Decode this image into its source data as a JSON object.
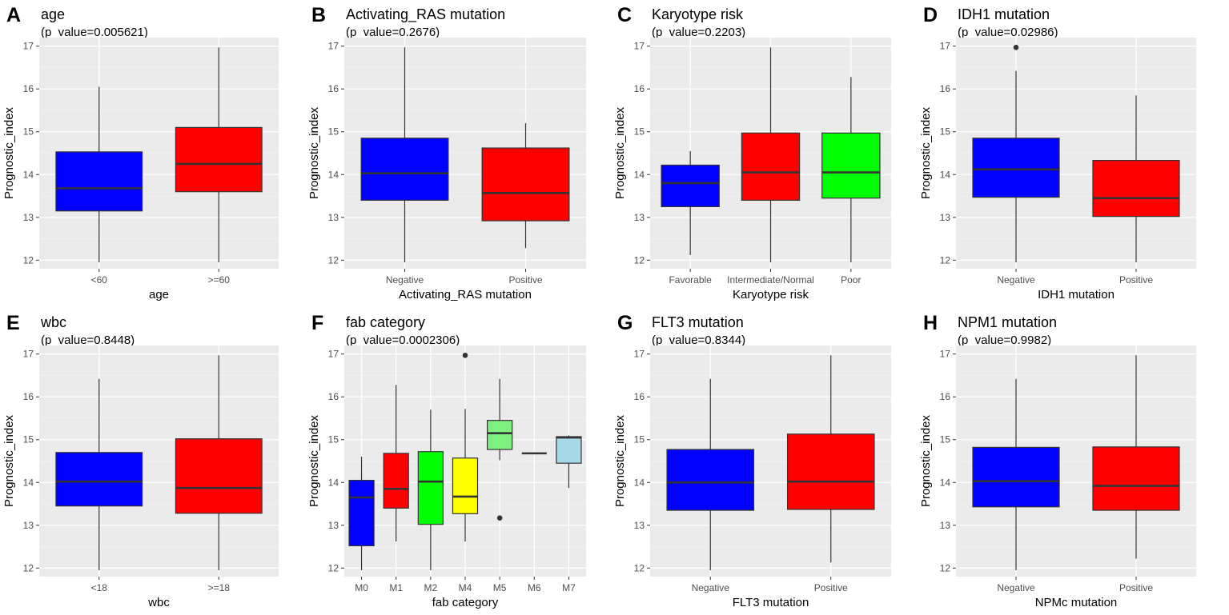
{
  "figure": {
    "ylabel": "Prognostic_index"
  },
  "chart_data": [
    {
      "type": "box",
      "letter": "A",
      "title": "age",
      "subtitle": "(p_value=0.005621)",
      "xlabel": "age",
      "ylabel": "Prognostic_index",
      "ylim": [
        11.8,
        17.2
      ],
      "yticks": [
        12,
        13,
        14,
        15,
        16,
        17
      ],
      "categories": [
        "<60",
        ">=60"
      ],
      "boxes": [
        {
          "label": "<60",
          "min": 11.95,
          "q1": 13.15,
          "median": 13.68,
          "q3": 14.53,
          "max": 16.05,
          "color": "#0000ff",
          "outliers": []
        },
        {
          "label": ">=60",
          "min": 11.95,
          "q1": 13.6,
          "median": 14.25,
          "q3": 15.1,
          "max": 16.97,
          "color": "#ff0000",
          "outliers": []
        }
      ]
    },
    {
      "type": "box",
      "letter": "B",
      "title": "Activating_RAS mutation",
      "subtitle": "(p_value=0.2676)",
      "xlabel": "Activating_RAS mutation",
      "ylabel": "Prognostic_index",
      "ylim": [
        11.8,
        17.2
      ],
      "yticks": [
        12,
        13,
        14,
        15,
        16,
        17
      ],
      "categories": [
        "Negative",
        "Positive"
      ],
      "boxes": [
        {
          "label": "Negative",
          "min": 11.95,
          "q1": 13.4,
          "median": 14.03,
          "q3": 14.85,
          "max": 16.97,
          "color": "#0000ff",
          "outliers": []
        },
        {
          "label": "Positive",
          "min": 12.28,
          "q1": 12.92,
          "median": 13.57,
          "q3": 14.62,
          "max": 15.2,
          "color": "#ff0000",
          "outliers": []
        }
      ]
    },
    {
      "type": "box",
      "letter": "C",
      "title": "Karyotype risk",
      "subtitle": "(p_value=0.2203)",
      "xlabel": "Karyotype risk",
      "ylabel": "Prognostic_index",
      "ylim": [
        11.8,
        17.2
      ],
      "yticks": [
        12,
        13,
        14,
        15,
        16,
        17
      ],
      "categories": [
        "Favorable",
        "Intermediate/Normal",
        "Poor"
      ],
      "boxes": [
        {
          "label": "Favorable",
          "min": 12.12,
          "q1": 13.25,
          "median": 13.8,
          "q3": 14.22,
          "max": 14.55,
          "color": "#0000ff",
          "outliers": []
        },
        {
          "label": "Intermediate/Normal",
          "min": 11.95,
          "q1": 13.4,
          "median": 14.05,
          "q3": 14.97,
          "max": 16.97,
          "color": "#ff0000",
          "outliers": []
        },
        {
          "label": "Poor",
          "min": 11.95,
          "q1": 13.45,
          "median": 14.05,
          "q3": 14.97,
          "max": 16.28,
          "color": "#00ff00",
          "outliers": []
        }
      ]
    },
    {
      "type": "box",
      "letter": "D",
      "title": "IDH1 mutation",
      "subtitle": "(p_value=0.02986)",
      "xlabel": "IDH1 mutation",
      "ylabel": "Prognostic_index",
      "ylim": [
        11.8,
        17.2
      ],
      "yticks": [
        12,
        13,
        14,
        15,
        16,
        17
      ],
      "categories": [
        "Negative",
        "Positive"
      ],
      "boxes": [
        {
          "label": "Negative",
          "min": 11.95,
          "q1": 13.47,
          "median": 14.12,
          "q3": 14.85,
          "max": 16.42,
          "color": "#0000ff",
          "outliers": [
            16.97
          ]
        },
        {
          "label": "Positive",
          "min": 11.95,
          "q1": 13.02,
          "median": 13.45,
          "q3": 14.33,
          "max": 15.85,
          "color": "#ff0000",
          "outliers": []
        }
      ]
    },
    {
      "type": "box",
      "letter": "E",
      "title": "wbc",
      "subtitle": "(p_value=0.8448)",
      "xlabel": "wbc",
      "ylabel": "Prognostic_index",
      "ylim": [
        11.8,
        17.2
      ],
      "yticks": [
        12,
        13,
        14,
        15,
        16,
        17
      ],
      "categories": [
        "<18",
        ">=18"
      ],
      "boxes": [
        {
          "label": "<18",
          "min": 11.95,
          "q1": 13.45,
          "median": 14.02,
          "q3": 14.7,
          "max": 16.42,
          "color": "#0000ff",
          "outliers": []
        },
        {
          "label": ">=18",
          "min": 11.95,
          "q1": 13.28,
          "median": 13.87,
          "q3": 15.02,
          "max": 16.97,
          "color": "#ff0000",
          "outliers": []
        }
      ]
    },
    {
      "type": "box",
      "letter": "F",
      "title": "fab category",
      "subtitle": "(p_value=0.0002306)",
      "xlabel": "fab category",
      "ylabel": "Prognostic_index",
      "ylim": [
        11.8,
        17.2
      ],
      "yticks": [
        12,
        13,
        14,
        15,
        16,
        17
      ],
      "categories": [
        "M0",
        "M1",
        "M2",
        "M4",
        "M5",
        "M6",
        "M7"
      ],
      "boxes": [
        {
          "label": "M0",
          "min": 11.95,
          "q1": 12.52,
          "median": 13.65,
          "q3": 14.05,
          "max": 14.6,
          "color": "#0000ff",
          "outliers": []
        },
        {
          "label": "M1",
          "min": 12.62,
          "q1": 13.4,
          "median": 13.85,
          "q3": 14.68,
          "max": 16.28,
          "color": "#ff0000",
          "outliers": []
        },
        {
          "label": "M2",
          "min": 11.95,
          "q1": 13.02,
          "median": 14.02,
          "q3": 14.72,
          "max": 15.7,
          "color": "#00ff00",
          "outliers": []
        },
        {
          "label": "M4",
          "min": 12.62,
          "q1": 13.27,
          "median": 13.67,
          "q3": 14.57,
          "max": 15.72,
          "color": "#ffff00",
          "outliers": [
            16.97
          ]
        },
        {
          "label": "M5",
          "min": 14.52,
          "q1": 14.77,
          "median": 15.15,
          "q3": 15.45,
          "max": 16.42,
          "color": "#7ff07f",
          "outliers": [
            13.17
          ]
        },
        {
          "label": "M6",
          "min": 14.68,
          "q1": 14.68,
          "median": 14.68,
          "q3": 14.68,
          "max": 14.68,
          "color": "#ff99cc",
          "outliers": []
        },
        {
          "label": "M7",
          "min": 13.87,
          "q1": 14.45,
          "median": 15.05,
          "q3": 15.07,
          "max": 15.1,
          "color": "#a6d8e8",
          "outliers": []
        }
      ]
    },
    {
      "type": "box",
      "letter": "G",
      "title": "FLT3 mutation",
      "subtitle": "(p_value=0.8344)",
      "xlabel": "FLT3 mutation",
      "ylabel": "Prognostic_index",
      "ylim": [
        11.8,
        17.2
      ],
      "yticks": [
        12,
        13,
        14,
        15,
        16,
        17
      ],
      "categories": [
        "Negative",
        "Positive"
      ],
      "boxes": [
        {
          "label": "Negative",
          "min": 11.95,
          "q1": 13.35,
          "median": 14.0,
          "q3": 14.77,
          "max": 16.42,
          "color": "#0000ff",
          "outliers": []
        },
        {
          "label": "Positive",
          "min": 12.13,
          "q1": 13.37,
          "median": 14.02,
          "q3": 15.13,
          "max": 16.97,
          "color": "#ff0000",
          "outliers": []
        }
      ]
    },
    {
      "type": "box",
      "letter": "H",
      "title": "NPM1 mutation",
      "subtitle": "(p_value=0.9982)",
      "xlabel": "NPMc mutation",
      "ylabel": "Prognostic_index",
      "ylim": [
        11.8,
        17.2
      ],
      "yticks": [
        12,
        13,
        14,
        15,
        16,
        17
      ],
      "categories": [
        "Negative",
        "Positive"
      ],
      "boxes": [
        {
          "label": "Negative",
          "min": 11.95,
          "q1": 13.43,
          "median": 14.03,
          "q3": 14.82,
          "max": 16.42,
          "color": "#0000ff",
          "outliers": []
        },
        {
          "label": "Positive",
          "min": 12.22,
          "q1": 13.35,
          "median": 13.92,
          "q3": 14.83,
          "max": 16.97,
          "color": "#ff0000",
          "outliers": []
        }
      ]
    }
  ]
}
